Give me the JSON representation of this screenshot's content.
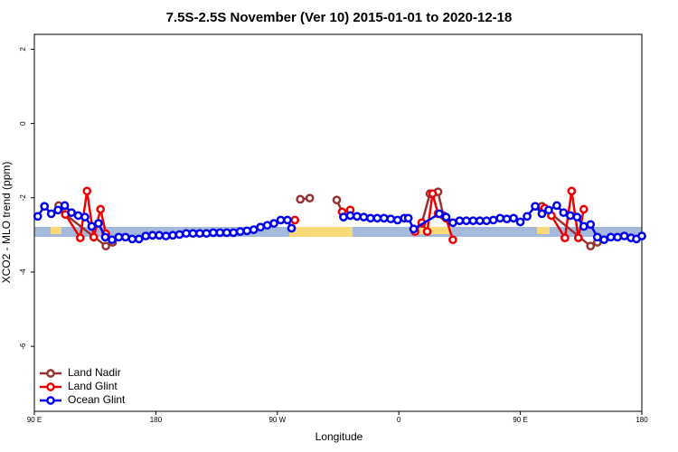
{
  "chart_data": {
    "type": "line",
    "title": "7.5S-2.5S November (Ver 10)   2015-01-01 to 2020-12-18",
    "x_label": "Longitude",
    "y_label": "XCO2 - MLO trend (ppm)",
    "xlim": [
      90,
      540
    ],
    "ylim": [
      -7.75,
      2.4
    ],
    "xticks": [
      {
        "value": 90,
        "label": "90 E"
      },
      {
        "value": 180,
        "label": "180"
      },
      {
        "value": 270,
        "label": "90 W"
      },
      {
        "value": 360,
        "label": "0"
      },
      {
        "value": 450,
        "label": "90 E"
      },
      {
        "value": 540,
        "label": "180"
      }
    ],
    "yticks": [
      2,
      0,
      -2,
      -4,
      -6
    ],
    "legend": "bottom-left",
    "series": [
      {
        "name": "Land Nadir",
        "color": "#993333",
        "x": [
          108,
          113,
          143,
          148,
          215,
          287,
          294,
          304,
          314,
          318,
          350,
          377,
          383,
          389,
          393,
          430,
          466,
          502,
          507
        ],
        "values": [
          -2.21,
          -2.45,
          -3.3,
          -3.2,
          null,
          -2.04,
          -2.01,
          null,
          -2.06,
          -2.38,
          null,
          -2.69,
          -1.89,
          -1.84,
          -2.48,
          null,
          -2.23,
          -3.3,
          -3.2
        ]
      },
      {
        "name": "Land Glint",
        "color": "#ee0000",
        "x": [
          113,
          124,
          129,
          134,
          139,
          143,
          215,
          283,
          300,
          318,
          324,
          350,
          372,
          377,
          381,
          385,
          389,
          395,
          400,
          430,
          468,
          473,
          483,
          488,
          493,
          497
        ],
        "values": [
          -2.45,
          -3.08,
          -1.82,
          -3.06,
          -2.31,
          -2.97,
          null,
          -2.6,
          null,
          -2.38,
          -2.33,
          null,
          -2.91,
          -2.67,
          -2.91,
          -1.89,
          -2.43,
          -2.55,
          -3.13,
          null,
          -2.28,
          -2.48,
          -3.08,
          -1.82,
          -3.08,
          -2.31
        ]
      },
      {
        "name": "Ocean Glint",
        "color": "#0000ee",
        "x": [
          92.5,
          97.5,
          102.5,
          107.5,
          112.5,
          117.5,
          122.5,
          127.5,
          132.5,
          137.5,
          142.5,
          147.5,
          152.5,
          157.5,
          162.5,
          167.5,
          172.5,
          177.5,
          182.5,
          187.5,
          192.5,
          197.5,
          202.5,
          207.5,
          212.5,
          217.5,
          222.5,
          227.5,
          232.5,
          237.5,
          242.5,
          247.5,
          252.5,
          257.5,
          262.5,
          267.5,
          272.5,
          277.5,
          280.5,
          300,
          319,
          324,
          329,
          334,
          339,
          344,
          349,
          354,
          359,
          364,
          367,
          371,
          390,
          395,
          400,
          405,
          410,
          415,
          420,
          425,
          430,
          435,
          440,
          445,
          450,
          455,
          461,
          466,
          471,
          477,
          482,
          487,
          492,
          497,
          502,
          507,
          512,
          517,
          522,
          527,
          532,
          536,
          540
        ],
        "values": [
          -2.5,
          -2.23,
          -2.43,
          -2.33,
          -2.21,
          -2.4,
          -2.48,
          -2.52,
          -2.77,
          -2.69,
          -3.06,
          -3.13,
          -3.06,
          -3.06,
          -3.11,
          -3.11,
          -3.03,
          -3.01,
          -3.01,
          -3.03,
          -3.01,
          -2.99,
          -2.96,
          -2.96,
          -2.96,
          -2.96,
          -2.94,
          -2.94,
          -2.94,
          -2.94,
          -2.91,
          -2.89,
          -2.86,
          -2.79,
          -2.74,
          -2.69,
          -2.6,
          -2.6,
          -2.82,
          null,
          -2.52,
          -2.48,
          -2.5,
          -2.52,
          -2.55,
          -2.55,
          -2.55,
          -2.57,
          -2.6,
          -2.55,
          -2.55,
          -2.84,
          -2.43,
          -2.52,
          -2.67,
          -2.62,
          -2.62,
          -2.62,
          -2.62,
          -2.62,
          -2.6,
          -2.55,
          -2.57,
          -2.55,
          -2.65,
          -2.5,
          -2.23,
          -2.43,
          -2.33,
          -2.21,
          -2.4,
          -2.48,
          -2.52,
          -2.77,
          -2.72,
          -3.06,
          -3.13,
          -3.06,
          -3.06,
          -3.03,
          -3.08,
          -3.11,
          -3.03
        ]
      }
    ]
  }
}
